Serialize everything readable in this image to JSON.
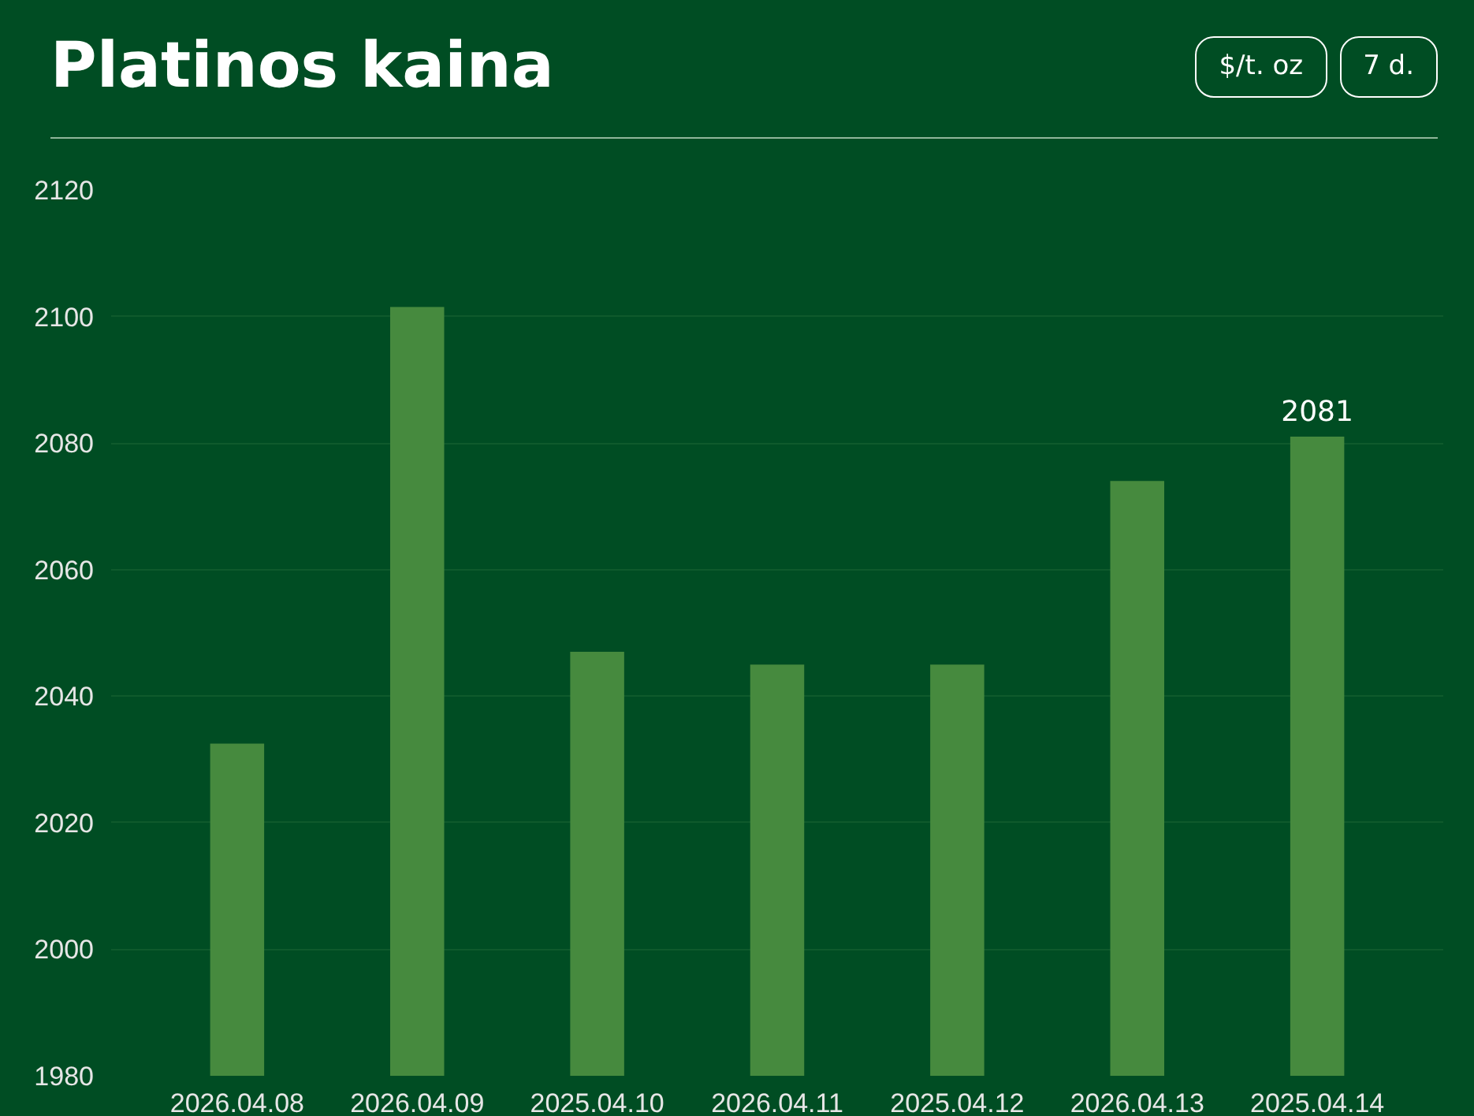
{
  "chart_data": {
    "type": "bar",
    "title": "Platinos kaina",
    "annotations": [
      "$/t. oz",
      "7 d."
    ],
    "categories": [
      "2026.04.08",
      "2026.04.09",
      "2025.04.10",
      "2026.04.11",
      "2025.04.12",
      "2026.04.13",
      "2025.04.14"
    ],
    "values": [
      2032.5,
      2101.5,
      2047,
      2045,
      2045,
      2074,
      2081
    ],
    "value_labels": [
      null,
      null,
      null,
      null,
      null,
      null,
      "2081"
    ],
    "color": "#468a3e",
    "ylim": [
      1980,
      2120
    ],
    "yticks": [
      1980,
      2000,
      2020,
      2040,
      2060,
      2080,
      2100,
      2120
    ],
    "grid": "y"
  }
}
